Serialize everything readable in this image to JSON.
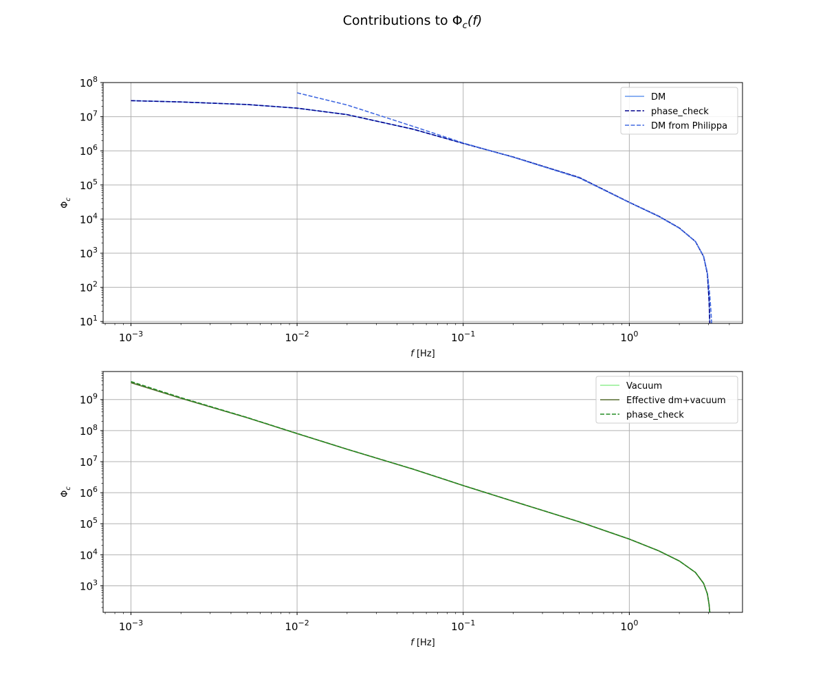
{
  "figure": {
    "title_prefix": "Contributions to ",
    "title_math": "Φ",
    "title_sub": "c",
    "title_suffix": "(f)"
  },
  "chart_data": [
    {
      "type": "line",
      "xscale": "log",
      "yscale": "log",
      "xlim": [
        0.00068,
        4.8
      ],
      "ylim": [
        8.8,
        100000000
      ],
      "grid": true,
      "legend": "top-right",
      "xlabel": {
        "math": "f",
        "unit": " [Hz]"
      },
      "ylabel": {
        "math": "Φ",
        "sub": "c"
      },
      "xticks": [
        {
          "value": 0.001,
          "base": "10",
          "exp": "−3"
        },
        {
          "value": 0.01,
          "base": "10",
          "exp": "−2"
        },
        {
          "value": 0.1,
          "base": "10",
          "exp": "−1"
        },
        {
          "value": 1,
          "base": "10",
          "exp": "0"
        }
      ],
      "yticks": [
        {
          "value": 10,
          "base": "10",
          "exp": "1"
        },
        {
          "value": 100,
          "base": "10",
          "exp": "2"
        },
        {
          "value": 1000,
          "base": "10",
          "exp": "3"
        },
        {
          "value": 10000,
          "base": "10",
          "exp": "4"
        },
        {
          "value": 100000,
          "base": "10",
          "exp": "5"
        },
        {
          "value": 1000000,
          "base": "10",
          "exp": "6"
        },
        {
          "value": 10000000,
          "base": "10",
          "exp": "7"
        },
        {
          "value": 100000000,
          "base": "10",
          "exp": "8"
        }
      ],
      "series": [
        {
          "name": "DM",
          "color": "#6495ed",
          "style": "solid",
          "x": [
            0.001,
            0.002,
            0.005,
            0.01,
            0.02,
            0.05,
            0.1,
            0.2,
            0.5,
            1,
            1.5,
            2,
            2.5,
            2.8,
            2.95,
            3.02,
            3.05
          ],
          "y": [
            29500000,
            27000000,
            22800000,
            17800000,
            11500000,
            4300000,
            1650000,
            660000,
            165000,
            31000,
            12200,
            5500,
            2200,
            800,
            250,
            40,
            8.8
          ]
        },
        {
          "name": "phase_check",
          "color": "#00008b",
          "style": "dashed",
          "x": [
            0.001,
            0.002,
            0.005,
            0.01,
            0.02,
            0.05,
            0.1,
            0.2,
            0.5,
            1,
            1.5,
            2,
            2.5,
            2.8,
            2.95,
            3.02,
            3.05
          ],
          "y": [
            29500000,
            27000000,
            22800000,
            17800000,
            11500000,
            4300000,
            1650000,
            660000,
            165000,
            31000,
            12200,
            5500,
            2200,
            800,
            250,
            40,
            8.8
          ]
        },
        {
          "name": "DM from Philippa",
          "color": "#4169e1",
          "style": "dashed",
          "x": [
            0.01,
            0.02,
            0.05,
            0.1,
            0.2,
            0.5,
            1,
            1.5,
            2,
            2.5,
            2.8,
            2.95,
            3.05,
            3.1,
            3.13
          ],
          "y": [
            50000000,
            22000000,
            5200000,
            1700000,
            650000,
            160000,
            30500,
            12000,
            5400,
            2200,
            820,
            270,
            60,
            20,
            8.8
          ]
        }
      ]
    },
    {
      "type": "line",
      "xscale": "log",
      "yscale": "log",
      "xlim": [
        0.00068,
        4.8
      ],
      "ylim": [
        140,
        8000000000
      ],
      "grid": true,
      "legend": "top-right",
      "xlabel": {
        "math": "f",
        "unit": " [Hz]"
      },
      "ylabel": {
        "math": "Φ",
        "sub": "c"
      },
      "xticks": [
        {
          "value": 0.001,
          "base": "10",
          "exp": "−3"
        },
        {
          "value": 0.01,
          "base": "10",
          "exp": "−2"
        },
        {
          "value": 0.1,
          "base": "10",
          "exp": "−1"
        },
        {
          "value": 1,
          "base": "10",
          "exp": "0"
        }
      ],
      "yticks": [
        {
          "value": 1000,
          "base": "10",
          "exp": "3"
        },
        {
          "value": 10000,
          "base": "10",
          "exp": "4"
        },
        {
          "value": 100000,
          "base": "10",
          "exp": "5"
        },
        {
          "value": 1000000,
          "base": "10",
          "exp": "6"
        },
        {
          "value": 10000000,
          "base": "10",
          "exp": "7"
        },
        {
          "value": 100000000,
          "base": "10",
          "exp": "8"
        },
        {
          "value": 1000000000,
          "base": "10",
          "exp": "9"
        }
      ],
      "series": [
        {
          "name": "Vacuum",
          "color": "#90ee90",
          "style": "solid",
          "x": [
            0.001,
            0.002,
            0.005,
            0.01,
            0.02,
            0.05,
            0.1,
            0.2,
            0.5,
            1,
            1.5,
            2,
            2.5,
            2.8,
            2.95,
            3.02,
            3.05
          ],
          "y": [
            3500000000,
            1100000000,
            260000000,
            80000000,
            25000000,
            5700000,
            1700000,
            530000,
            115000,
            32000,
            13500,
            6300,
            2700,
            1200,
            550,
            250,
            140
          ]
        },
        {
          "name": "Effective dm+vacuum",
          "color": "#556b2f",
          "style": "solid",
          "x": [
            0.001,
            0.002,
            0.005,
            0.01,
            0.02,
            0.05,
            0.1,
            0.2,
            0.5,
            1,
            1.5,
            2,
            2.5,
            2.8,
            2.95,
            3.02,
            3.05
          ],
          "y": [
            3500000000,
            1100000000,
            260000000,
            80000000,
            25000000,
            5700000,
            1700000,
            530000,
            115000,
            32000,
            13500,
            6300,
            2700,
            1200,
            550,
            250,
            140
          ]
        },
        {
          "name": "phase_check",
          "color": "#228b22",
          "style": "dashed",
          "x": [
            0.001,
            0.002,
            0.005,
            0.01,
            0.02,
            0.05,
            0.1,
            0.2,
            0.5,
            1,
            1.5,
            2,
            2.5,
            2.8,
            2.95,
            3.02,
            3.05
          ],
          "y": [
            3800000000,
            1150000000,
            265000000,
            81000000,
            25200000,
            5750000,
            1710000,
            532000,
            115500,
            32100,
            13500,
            6300,
            2700,
            1200,
            550,
            250,
            140
          ]
        }
      ]
    }
  ]
}
